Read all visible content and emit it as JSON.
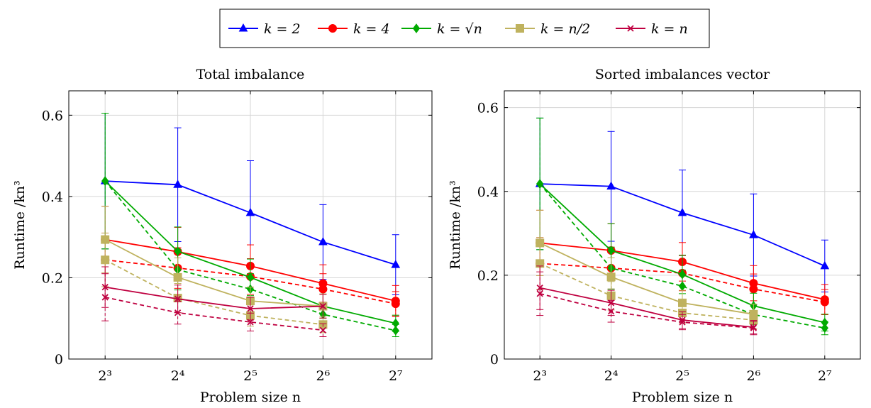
{
  "legend": {
    "entries": [
      {
        "series": "k2",
        "label": "k = 2",
        "color": "#0000ff",
        "marker": "triangle"
      },
      {
        "series": "k4",
        "label": "k = 4",
        "color": "#ff0000",
        "marker": "circle"
      },
      {
        "series": "ksqrt",
        "label": "k = √n",
        "color": "#00aa00",
        "marker": "diamond"
      },
      {
        "series": "khalf",
        "label": "k = n/2",
        "color": "#bfb25e",
        "marker": "square"
      },
      {
        "series": "kn",
        "label": "k = n",
        "color": "#bf0040",
        "marker": "cross"
      }
    ]
  },
  "chart_data": [
    {
      "type": "line",
      "title": "Total imbalance",
      "xlabel": "Problem size n",
      "ylabel": "Runtime /kn³",
      "x": [
        3,
        4,
        5,
        6,
        7
      ],
      "x_tick_labels": [
        "2³",
        "2⁴",
        "2⁵",
        "2⁶",
        "2⁷"
      ],
      "ylim": [
        0,
        0.66
      ],
      "yticks": [
        0,
        0.2,
        0.4,
        0.6
      ],
      "y_tick_labels": [
        "0",
        "0.2",
        "0.4",
        "0.6"
      ],
      "grid": true,
      "series": [
        {
          "id": "k2",
          "style": "solid",
          "x": [
            3,
            4,
            5,
            6,
            7
          ],
          "values": [
            0.438,
            0.429,
            0.36,
            0.288,
            0.232
          ],
          "error": [
            0.167,
            0.14,
            0.128,
            0.092,
            0.074
          ]
        },
        {
          "id": "k4",
          "style": "solid",
          "x": [
            3,
            4,
            5,
            6,
            7
          ],
          "values": [
            0.294,
            0.264,
            0.229,
            0.186,
            0.143
          ],
          "error": [
            0.082,
            0.06,
            0.052,
            0.046,
            0.038
          ]
        },
        {
          "id": "k4",
          "style": "dashed",
          "x": [
            3,
            4,
            5,
            6,
            7
          ],
          "values": [
            0.244,
            0.224,
            0.203,
            0.172,
            0.136
          ],
          "error": [
            0.066,
            0.05,
            0.044,
            0.038,
            0.03
          ]
        },
        {
          "id": "ksqrt",
          "style": "solid",
          "x": [
            3,
            4,
            5,
            6,
            7
          ],
          "values": [
            0.438,
            0.265,
            0.201,
            0.13,
            0.088
          ],
          "error": [
            0.167,
            0.06,
            0.045,
            0.03,
            0.02
          ]
        },
        {
          "id": "ksqrt",
          "style": "dashed",
          "x": [
            3,
            4,
            5,
            6,
            7
          ],
          "values": [
            0.438,
            0.22,
            0.172,
            0.11,
            0.07
          ],
          "error": [
            0.167,
            0.05,
            0.038,
            0.024,
            0.015
          ]
        },
        {
          "id": "khalf",
          "style": "solid",
          "x": [
            3,
            4,
            5,
            6
          ],
          "values": [
            0.294,
            0.201,
            0.143,
            0.13
          ],
          "error": [
            0.082,
            0.048,
            0.034,
            0.03
          ]
        },
        {
          "id": "khalf",
          "style": "dashed",
          "x": [
            3,
            4,
            5,
            6
          ],
          "values": [
            0.244,
            0.15,
            0.107,
            0.085
          ],
          "error": [
            0.066,
            0.036,
            0.026,
            0.02
          ]
        },
        {
          "id": "kn",
          "style": "solid",
          "x": [
            3,
            4,
            5,
            6
          ],
          "values": [
            0.177,
            0.148,
            0.124,
            0.13
          ],
          "error": [
            0.05,
            0.034,
            0.028,
            0.029
          ]
        },
        {
          "id": "kn",
          "style": "dashed",
          "x": [
            3,
            4,
            5,
            6
          ],
          "values": [
            0.152,
            0.114,
            0.091,
            0.071
          ],
          "error": [
            0.058,
            0.028,
            0.022,
            0.016
          ]
        }
      ]
    },
    {
      "type": "line",
      "title": "Sorted imbalances vector",
      "xlabel": "Problem size n",
      "ylabel": "Runtime /kn³",
      "x": [
        3,
        4,
        5,
        6,
        7
      ],
      "x_tick_labels": [
        "2³",
        "2⁴",
        "2⁵",
        "2⁶",
        "2⁷"
      ],
      "ylim": [
        0,
        0.64
      ],
      "yticks": [
        0,
        0.2,
        0.4,
        0.6
      ],
      "y_tick_labels": [
        "0",
        "0.2",
        "0.4",
        "0.6"
      ],
      "grid": true,
      "series": [
        {
          "id": "k2",
          "style": "solid",
          "x": [
            3,
            4,
            5,
            6,
            7
          ],
          "values": [
            0.418,
            0.412,
            0.349,
            0.296,
            0.222
          ],
          "error": [
            0.157,
            0.131,
            0.102,
            0.098,
            0.062
          ]
        },
        {
          "id": "k4",
          "style": "solid",
          "x": [
            3,
            4,
            5,
            6,
            7
          ],
          "values": [
            0.277,
            0.259,
            0.232,
            0.181,
            0.142
          ],
          "error": [
            0.078,
            0.064,
            0.046,
            0.042,
            0.036
          ]
        },
        {
          "id": "k4",
          "style": "dashed",
          "x": [
            3,
            4,
            5,
            6,
            7
          ],
          "values": [
            0.228,
            0.217,
            0.205,
            0.167,
            0.136
          ],
          "error": [
            0.062,
            0.05,
            0.042,
            0.036,
            0.03
          ]
        },
        {
          "id": "ksqrt",
          "style": "solid",
          "x": [
            3,
            4,
            5,
            6,
            7
          ],
          "values": [
            0.418,
            0.259,
            0.202,
            0.127,
            0.087
          ],
          "error": [
            0.157,
            0.064,
            0.046,
            0.03,
            0.02
          ]
        },
        {
          "id": "ksqrt",
          "style": "dashed",
          "x": [
            3,
            4,
            5,
            6,
            7
          ],
          "values": [
            0.418,
            0.217,
            0.174,
            0.106,
            0.074
          ],
          "error": [
            0.157,
            0.05,
            0.038,
            0.024,
            0.016
          ]
        },
        {
          "id": "khalf",
          "style": "solid",
          "x": [
            3,
            4,
            5,
            6
          ],
          "values": [
            0.277,
            0.196,
            0.134,
            0.107
          ],
          "error": [
            0.078,
            0.046,
            0.03,
            0.024
          ]
        },
        {
          "id": "khalf",
          "style": "dashed",
          "x": [
            3,
            4,
            5,
            6
          ],
          "values": [
            0.228,
            0.151,
            0.11,
            0.093
          ],
          "error": [
            0.062,
            0.034,
            0.024,
            0.02
          ]
        },
        {
          "id": "kn",
          "style": "solid",
          "x": [
            3,
            4,
            5,
            6
          ],
          "values": [
            0.17,
            0.134,
            0.093,
            0.076
          ],
          "error": [
            0.052,
            0.03,
            0.02,
            0.016
          ]
        },
        {
          "id": "kn",
          "style": "dashed",
          "x": [
            3,
            4,
            5,
            6
          ],
          "values": [
            0.156,
            0.114,
            0.088,
            0.074
          ],
          "error": [
            0.052,
            0.026,
            0.018,
            0.016
          ]
        }
      ]
    }
  ]
}
